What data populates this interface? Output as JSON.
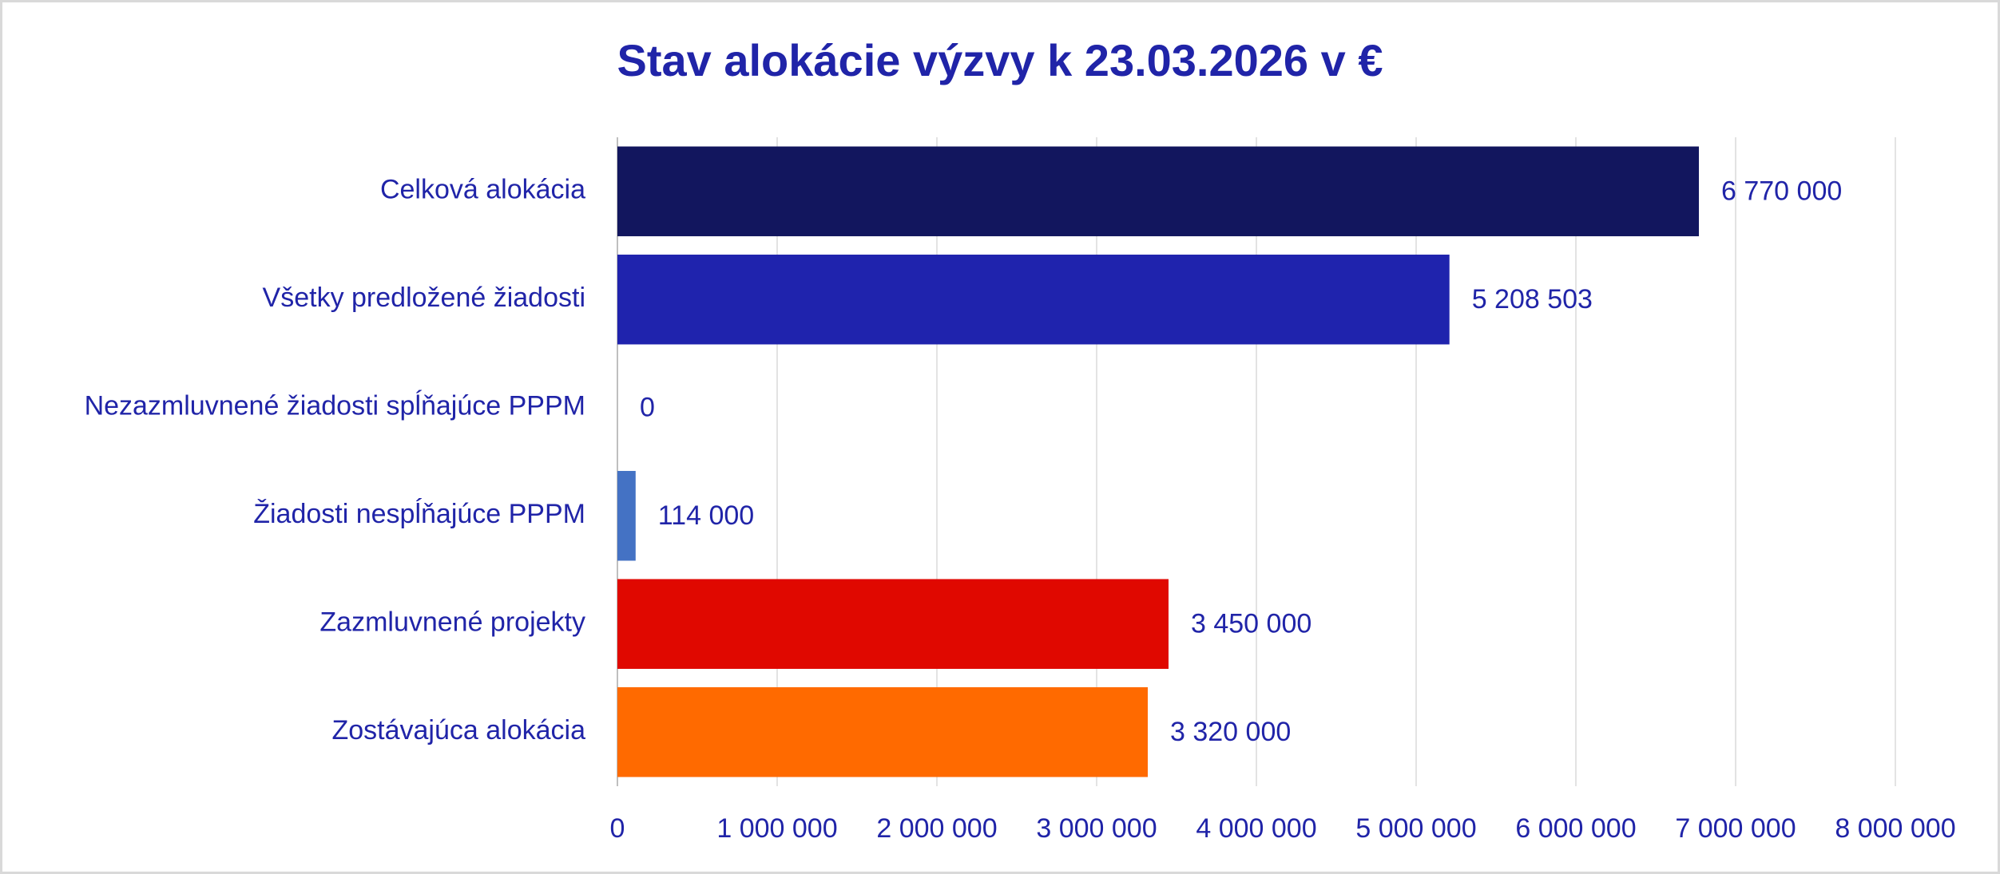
{
  "chart_data": {
    "type": "bar",
    "orientation": "horizontal",
    "title": "Stav alokácie výzvy k 23.03.2026 v €",
    "categories": [
      "Celková alokácia",
      "Všetky predložené žiadosti",
      "Nezazmluvnené žiadosti spĺňajúce PPPM",
      "Žiadosti nespĺňajúce PPPM",
      "Zazmluvnené projekty",
      "Zostávajúca alokácia"
    ],
    "values": [
      6770000,
      5208503,
      0,
      114000,
      3450000,
      3320000
    ],
    "value_labels": [
      "6 770 000",
      "5 208 503",
      "0",
      "114 000",
      "3 450 000",
      "3 320 000"
    ],
    "colors": [
      "#12165e",
      "#1f23ad",
      "#4472c4",
      "#4472c4",
      "#e00800",
      "#ff6a00"
    ],
    "xlim": [
      0,
      8000000
    ],
    "xticks": [
      0,
      {
        "value": 1000000,
        "label": "1 000 000"
      },
      {
        "value": 2000000,
        "label": "2 000 000"
      },
      {
        "value": 3000000,
        "label": "3 000 000"
      },
      {
        "value": 4000000,
        "label": "4 000 000"
      },
      {
        "value": 5000000,
        "label": "5 000 000"
      },
      {
        "value": 6000000,
        "label": "6 000 000"
      },
      {
        "value": 7000000,
        "label": "7 000 000"
      },
      {
        "value": 8000000,
        "label": "8 000 000"
      }
    ],
    "grid": true
  }
}
